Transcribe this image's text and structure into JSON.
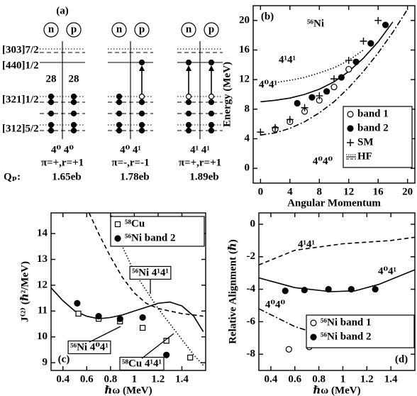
{
  "diagram": {
    "panel_label": "(a)",
    "levels": [
      "[303]7/2",
      "[440]1/2",
      "[321]1/2",
      "[312]5/2"
    ],
    "shell_gap": [
      "28",
      "28"
    ],
    "columns": [
      {
        "n": "n",
        "p": "p",
        "config": "4⁰ 4⁰",
        "parity": "π=+,r=+1",
        "qp": "1.65eb"
      },
      {
        "n": "n",
        "p": "p",
        "config": "4⁰ 4¹",
        "parity": "π=-,r=-1",
        "qp": "1.78eb"
      },
      {
        "n": "n",
        "p": "p",
        "config": "4¹ 4¹",
        "parity": "π=+,r=+1",
        "qp": "1.89eb"
      }
    ],
    "qp_label": "Qₚ:"
  },
  "chart_data": [
    {
      "type": "line",
      "panel_label": "(b)",
      "title": "⁵⁶Ni",
      "xlabel": "Angular Momentum",
      "ylabel": "Energy (MeV)",
      "xlim": [
        -1,
        21
      ],
      "ylim": [
        -2,
        22
      ],
      "xticks": [
        0,
        4,
        8,
        12,
        16,
        20
      ],
      "yticks": [
        0,
        4,
        8,
        12,
        16,
        20
      ],
      "hf_legend": "HF",
      "series": [
        {
          "name": "band 1",
          "marker": "open-circle",
          "x": [
            2,
            4,
            6,
            8,
            10,
            12
          ],
          "values": [
            5.3,
            6.3,
            7.7,
            9.2,
            11.0,
            13.4
          ]
        },
        {
          "name": "band 2",
          "marker": "filled-circle",
          "x": [
            5,
            7,
            9,
            11,
            13,
            15,
            17
          ],
          "values": [
            8.8,
            9.6,
            10.4,
            12.3,
            14.4,
            16.9,
            19.4
          ]
        },
        {
          "name": "SM",
          "marker": "plus",
          "x": [
            0,
            2,
            4,
            6,
            8,
            10,
            12,
            14,
            16
          ],
          "values": [
            4.9,
            5.5,
            6.6,
            8.2,
            9.8,
            12.1,
            14.6,
            17.2,
            20.0
          ]
        },
        {
          "name": "4¹4¹",
          "style": "dotted",
          "x": [
            2,
            4,
            6,
            8,
            10,
            12,
            14
          ],
          "values": [
            11.6,
            11.9,
            12.3,
            12.9,
            13.6,
            14.6,
            16.0
          ]
        },
        {
          "name": "4⁰4¹",
          "style": "solid",
          "x": [
            0,
            2,
            4,
            6,
            8,
            10,
            12,
            14,
            16,
            18
          ],
          "values": [
            9.0,
            9.2,
            9.5,
            10.0,
            10.7,
            11.7,
            13.1,
            14.9,
            17.1,
            19.8
          ]
        },
        {
          "name": "4⁰4⁰",
          "style": "dashdot",
          "x": [
            0,
            2,
            4,
            6,
            8,
            10,
            12,
            14,
            16,
            18,
            20
          ],
          "values": [
            4.5,
            4.8,
            5.4,
            6.3,
            7.5,
            9.0,
            10.9,
            13.1,
            15.6,
            18.4,
            21.5
          ]
        }
      ]
    },
    {
      "type": "line",
      "panel_label": "(c)",
      "xlabel": "ℏω (MeV)",
      "ylabel": "J⁽²⁾ (ℏ²/MeV)",
      "xlim": [
        0.3,
        1.6
      ],
      "ylim": [
        8.7,
        14.8
      ],
      "xticks": [
        0.4,
        0.6,
        0.8,
        1.0,
        1.2,
        1.4
      ],
      "yticks": [
        9,
        10,
        11,
        12,
        13,
        14
      ],
      "series": [
        {
          "name": "⁵⁸Cu",
          "marker": "square",
          "x": [
            0.53,
            0.7,
            0.88,
            1.07,
            1.27,
            1.47
          ],
          "values": [
            10.9,
            10.7,
            10.6,
            10.35,
            9.85,
            9.2
          ]
        },
        {
          "name": "⁵⁶Ni band 2",
          "marker": "filled-circle",
          "x": [
            0.52,
            0.7,
            0.88,
            1.07,
            1.27
          ],
          "values": [
            11.3,
            10.8,
            10.7,
            10.75,
            9.3
          ]
        },
        {
          "name": "⁵⁶Ni 4¹4¹",
          "style": "dashed",
          "x": [
            0.62,
            0.7,
            0.8,
            0.9,
            1.0,
            1.1,
            1.2,
            1.3,
            1.4,
            1.5,
            1.58
          ],
          "values": [
            14.8,
            14.0,
            13.1,
            12.3,
            11.7,
            11.3,
            11.1,
            11.0,
            10.9,
            10.85,
            10.8
          ]
        },
        {
          "name": "⁵⁶Ni 4⁰4¹",
          "style": "solid",
          "x": [
            0.3,
            0.4,
            0.5,
            0.6,
            0.7,
            0.8,
            0.9,
            1.0,
            1.1,
            1.2,
            1.3,
            1.4,
            1.5,
            1.58
          ],
          "values": [
            11.9,
            11.4,
            11.0,
            10.8,
            10.7,
            10.75,
            10.85,
            11.0,
            11.15,
            11.3,
            11.35,
            11.2,
            10.8,
            10.2
          ]
        },
        {
          "name": "⁵⁸Cu 4¹4¹",
          "style": "dotted",
          "x": [
            0.8,
            0.9,
            1.0,
            1.1,
            1.2,
            1.3,
            1.4,
            1.5,
            1.58
          ],
          "values": [
            14.8,
            13.5,
            12.5,
            11.8,
            11.1,
            10.5,
            9.9,
            9.3,
            8.9
          ]
        }
      ]
    },
    {
      "type": "line",
      "panel_label": "(d)",
      "xlabel": "ℏω (MeV)",
      "ylabel": "Relative Alignment (ℏ)",
      "xlim": [
        0.3,
        1.6
      ],
      "ylim": [
        -9,
        0.7
      ],
      "xticks": [
        0.4,
        0.6,
        0.8,
        1.0,
        1.2,
        1.4
      ],
      "yticks": [
        0,
        -2,
        -4,
        -6,
        -8
      ],
      "series": [
        {
          "name": "⁵⁶Ni band 1",
          "marker": "open-circle",
          "x": [
            0.55,
            0.72,
            0.88,
            1.07
          ],
          "values": [
            -7.7,
            -7.55,
            -7.3,
            -7.0
          ]
        },
        {
          "name": "⁵⁶Ni band 2",
          "marker": "filled-circle",
          "x": [
            0.52,
            0.68,
            0.88,
            1.07,
            1.27
          ],
          "values": [
            -4.1,
            -4.05,
            -4.0,
            -4.0,
            -4.0
          ]
        },
        {
          "name": "4¹4¹",
          "style": "dashed",
          "x": [
            0.3,
            0.6,
            1.0,
            1.4,
            1.6
          ],
          "values": [
            -2.5,
            -1.6,
            -1.2,
            -1.0,
            -0.8
          ]
        },
        {
          "name": "4⁰4¹",
          "style": "solid",
          "x": [
            0.3,
            0.6,
            0.9,
            1.1,
            1.3,
            1.6
          ],
          "values": [
            -3.3,
            -3.9,
            -4.15,
            -4.1,
            -3.7,
            -2.8
          ]
        },
        {
          "name": "4⁰4⁰",
          "style": "dashdot",
          "x": [
            0.3,
            0.6,
            0.9,
            1.2,
            1.6
          ],
          "values": [
            -5.2,
            -6.3,
            -7.0,
            -7.3,
            -7.5
          ]
        }
      ]
    }
  ]
}
